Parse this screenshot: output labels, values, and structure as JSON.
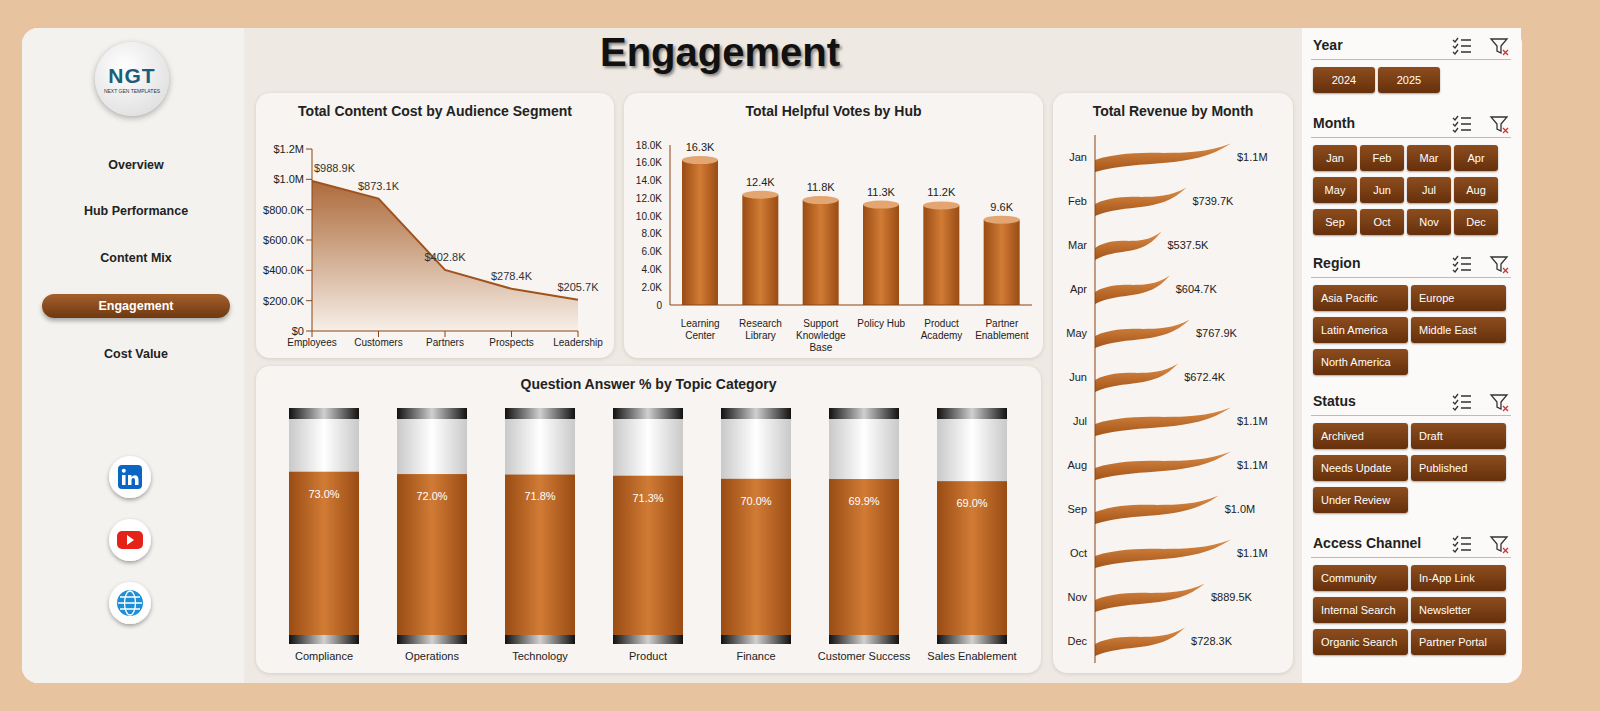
{
  "title": "Engagement",
  "logo": {
    "text": "NGT",
    "subtitle": "NEXT GEN TEMPLATES"
  },
  "nav": [
    "Overview",
    "Hub Performance",
    "Content Mix",
    "Engagement",
    "Cost Value"
  ],
  "filters": [
    {
      "title": "Year",
      "options": [
        "2024",
        "2025"
      ]
    },
    {
      "title": "Month",
      "options": [
        "Jan",
        "Feb",
        "Mar",
        "Apr",
        "May",
        "Jun",
        "Jul",
        "Aug",
        "Sep",
        "Oct",
        "Nov",
        "Dec"
      ]
    },
    {
      "title": "Region",
      "options": [
        "Asia Pacific",
        "Europe",
        "Latin America",
        "Middle East",
        "North America"
      ]
    },
    {
      "title": "Status",
      "options": [
        "Archived",
        "Draft",
        "Needs Update",
        "Published",
        "Under Review"
      ]
    },
    {
      "title": "Access Channel",
      "options": [
        "Community",
        "In-App Link",
        "Internal Search",
        "Newsletter",
        "Organic Search",
        "Partner Portal"
      ]
    }
  ],
  "chart_data": [
    {
      "type": "area",
      "title": "Total Content Cost by Audience Segment",
      "categories": [
        "Employees",
        "Customers",
        "Partners",
        "Prospects",
        "Leadership"
      ],
      "values": [
        988900,
        873100,
        402800,
        278400,
        205700
      ],
      "value_labels": [
        "$988.9K",
        "$873.1K",
        "$402.8K",
        "$278.4K",
        "$205.7K"
      ],
      "data_labels": true,
      "color": "#a0531c",
      "ylim": [
        0,
        1200000
      ],
      "yticks": [
        {
          "value": 0,
          "label": "$0"
        },
        {
          "value": 200000,
          "label": "$200.0K"
        },
        {
          "value": 400000,
          "label": "$400.0K"
        },
        {
          "value": 600000,
          "label": "$600.0K"
        },
        {
          "value": 800000,
          "label": "$800.0K"
        },
        {
          "value": 1000000,
          "label": "$1.0M"
        },
        {
          "value": 1200000,
          "label": "$1.2M"
        }
      ]
    },
    {
      "type": "bar",
      "title": "Total Helpful Votes by Hub",
      "categories": [
        "Learning Center",
        "Research Library",
        "Support Knowledge Base",
        "Policy Hub",
        "Product Academy",
        "Partner Enablement"
      ],
      "values": [
        16300,
        12400,
        11800,
        11300,
        11200,
        9600
      ],
      "value_labels": [
        "16.3K",
        "12.4K",
        "11.8K",
        "11.3K",
        "11.2K",
        "9.6K"
      ],
      "data_labels": true,
      "color": "#c06a26",
      "ylim": [
        0,
        18000
      ],
      "yticks": [
        0,
        {
          "value": 2000,
          "label": "2.0K"
        },
        {
          "value": 4000,
          "label": "4.0K"
        },
        {
          "value": 6000,
          "label": "6.0K"
        },
        {
          "value": 8000,
          "label": "8.0K"
        },
        {
          "value": 10000,
          "label": "10.0K"
        },
        {
          "value": 12000,
          "label": "12.0K"
        },
        {
          "value": 14000,
          "label": "14.0K"
        },
        {
          "value": 16000,
          "label": "16.0K"
        },
        {
          "value": 18000,
          "label": "18.0K"
        }
      ]
    },
    {
      "type": "bar",
      "orientation": "horizontal",
      "title": "Total Revenue by Month",
      "categories": [
        "Jan",
        "Feb",
        "Mar",
        "Apr",
        "May",
        "Jun",
        "Jul",
        "Aug",
        "Sep",
        "Oct",
        "Nov",
        "Dec"
      ],
      "values": [
        1100000,
        739700,
        537500,
        604700,
        767900,
        672400,
        1100000,
        1100000,
        1000000,
        1100000,
        889500,
        728300
      ],
      "value_labels": [
        "$1.1M",
        "$739.7K",
        "$537.5K",
        "$604.7K",
        "$767.9K",
        "$672.4K",
        "$1.1M",
        "$1.1M",
        "$1.0M",
        "$1.1M",
        "$889.5K",
        "$728.3K"
      ],
      "data_labels": true,
      "tick_labels": "y",
      "color": "#c06a26"
    },
    {
      "type": "bar",
      "title": "Question Answer % by Topic Category",
      "categories": [
        "Compliance",
        "Operations",
        "Technology",
        "Product",
        "Finance",
        "Customer Success",
        "Sales Enablement"
      ],
      "values": [
        73.0,
        72.0,
        71.8,
        71.3,
        70.0,
        69.9,
        69.0
      ],
      "value_labels": [
        "73.0%",
        "72.0%",
        "71.8%",
        "71.3%",
        "70.0%",
        "69.9%",
        "69.0%"
      ],
      "data_labels": true,
      "tick_labels": "x",
      "ylim": [
        0,
        100
      ],
      "color": "#c06a26"
    }
  ]
}
